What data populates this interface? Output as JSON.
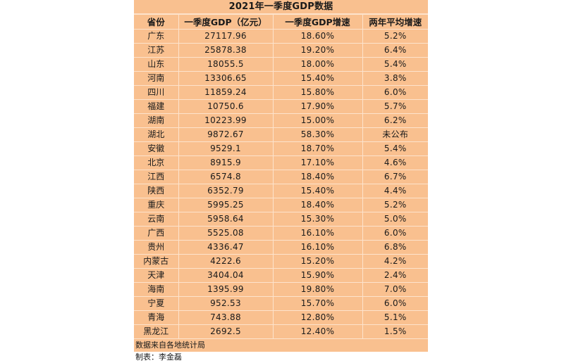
{
  "table": {
    "title": "2021年一季度GDP数据",
    "headers": [
      "省份",
      "一季度GDP（亿元）",
      "一季度GDP增速",
      "两年平均增速"
    ],
    "rows": [
      [
        "广东",
        "27117.96",
        "18.60%",
        "5.2%"
      ],
      [
        "江苏",
        "25878.38",
        "19.20%",
        "6.4%"
      ],
      [
        "山东",
        "18055.5",
        "18.00%",
        "5.4%"
      ],
      [
        "河南",
        "13306.65",
        "15.40%",
        "3.8%"
      ],
      [
        "四川",
        "11859.24",
        "15.80%",
        "6.0%"
      ],
      [
        "福建",
        "10750.6",
        "17.90%",
        "5.7%"
      ],
      [
        "湖南",
        "10223.99",
        "15.00%",
        "6.2%"
      ],
      [
        "湖北",
        "9872.67",
        "58.30%",
        "未公布"
      ],
      [
        "安徽",
        "9529.1",
        "18.70%",
        "5.4%"
      ],
      [
        "北京",
        "8915.9",
        "17.10%",
        "4.6%"
      ],
      [
        "江西",
        "6574.8",
        "18.40%",
        "6.7%"
      ],
      [
        "陕西",
        "6352.79",
        "15.40%",
        "4.4%"
      ],
      [
        "重庆",
        "5995.25",
        "18.40%",
        "5.2%"
      ],
      [
        "云南",
        "5958.64",
        "15.30%",
        "5.0%"
      ],
      [
        "广西",
        "5525.08",
        "16.10%",
        "6.0%"
      ],
      [
        "贵州",
        "4336.47",
        "16.10%",
        "6.8%"
      ],
      [
        "内蒙古",
        "4222.6",
        "15.20%",
        "4.2%"
      ],
      [
        "天津",
        "3404.04",
        "15.90%",
        "2.4%"
      ],
      [
        "海南",
        "1395.99",
        "19.80%",
        "7.0%"
      ],
      [
        "宁夏",
        "952.53",
        "15.70%",
        "6.0%"
      ],
      [
        "青海",
        "743.88",
        "12.80%",
        "5.1%"
      ],
      [
        "黑龙江",
        "2692.5",
        "12.40%",
        "1.5%"
      ]
    ]
  },
  "footer": {
    "source": "数据来自各地统计局",
    "author": "制表：李金磊"
  },
  "colors": {
    "background": "#f9c08f",
    "grid": "#fde3cc",
    "text": "#1a1a1a"
  }
}
